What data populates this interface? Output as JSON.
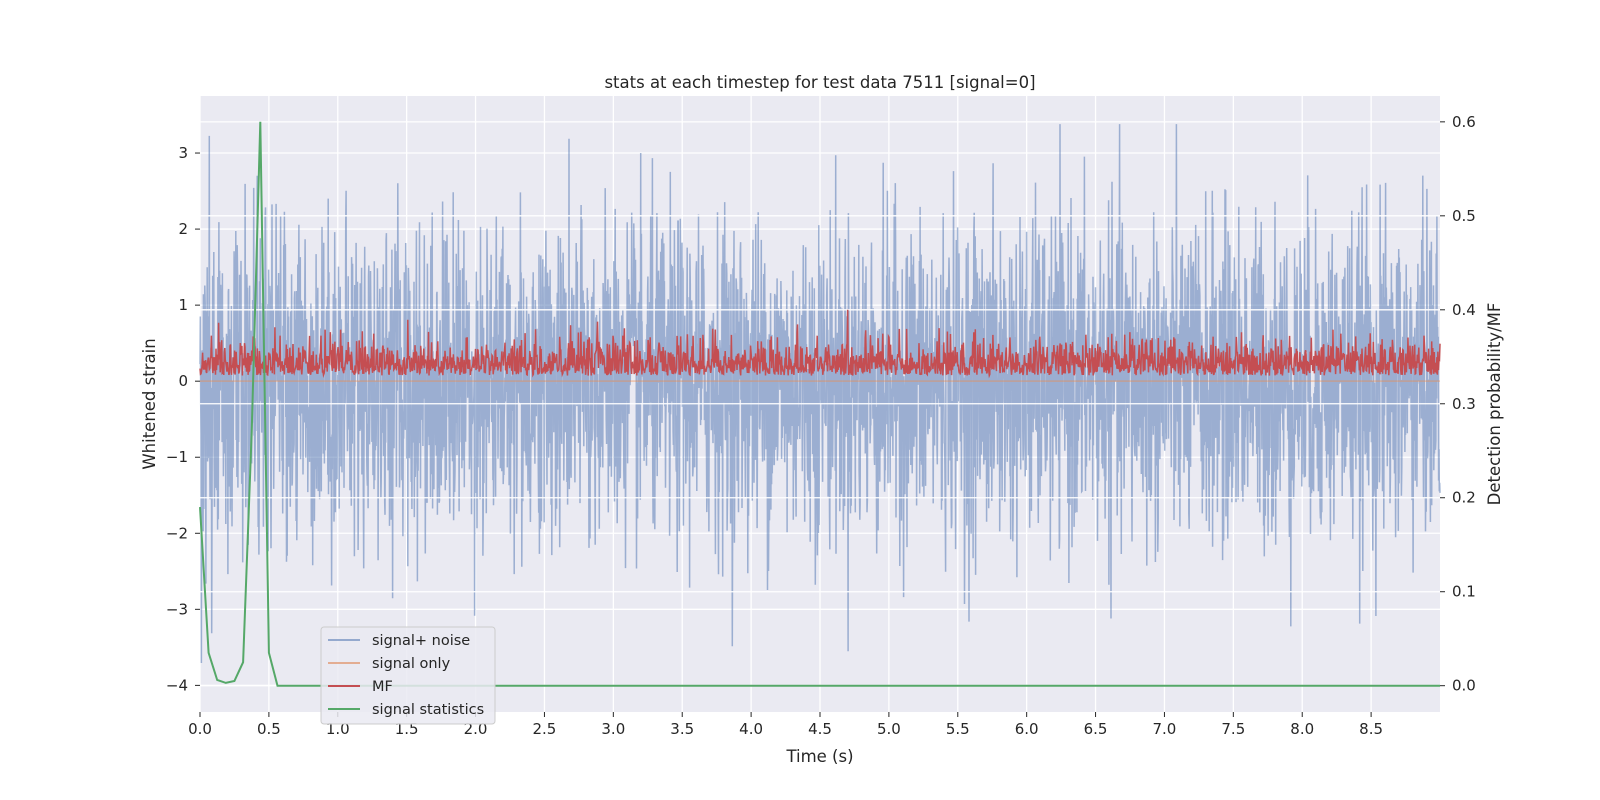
{
  "chart_data": {
    "type": "line",
    "title": "stats at each timestep for test data 7511 [signal=0]",
    "xlabel": "Time (s)",
    "ylabel": "Whitened strain",
    "ylabel_right": "Detection probability/MF",
    "xlim": [
      0.0,
      9.0
    ],
    "ylim": [
      -4.35,
      3.75
    ],
    "ylim_right": [
      -0.028,
      0.6275
    ],
    "x_ticks": [
      "0.0",
      "0.5",
      "1.0",
      "1.5",
      "2.0",
      "2.5",
      "3.0",
      "3.5",
      "4.0",
      "4.5",
      "5.0",
      "5.5",
      "6.0",
      "6.5",
      "7.0",
      "7.5",
      "8.0",
      "8.5"
    ],
    "y_ticks": [
      "3",
      "2",
      "1",
      "0",
      "−1",
      "−2",
      "−3",
      "−4"
    ],
    "y_ticks_right": [
      "0.6",
      "0.5",
      "0.4",
      "0.3",
      "0.2",
      "0.1",
      "0.0"
    ],
    "grid": true,
    "legend_position": "lower-left",
    "series": [
      {
        "name": "signal+ noise",
        "axis": "left",
        "color": "#4c72b0",
        "alpha": 0.5,
        "description": "whitened noise, roughly Gaussian, envelope approx -2.5 to +2.5 with spikes",
        "min": -3.75,
        "max": 3.38
      },
      {
        "name": "signal only",
        "axis": "left",
        "color": "#dd8452",
        "alpha": 0.5,
        "values_const": 0.0
      },
      {
        "name": "MF",
        "axis": "right",
        "color": "#c44e52",
        "description": "matched-filter output, baseline approx 0.33-0.35, peaks up to approx 0.40",
        "min": 0.33,
        "max": 0.4
      },
      {
        "name": "signal statistics",
        "axis": "right",
        "color": "#55a868",
        "x": [
          0.0,
          0.0625,
          0.125,
          0.1875,
          0.25,
          0.3125,
          0.375,
          0.4375,
          0.5,
          0.5625,
          0.625,
          0.75,
          1.0,
          2.0,
          3.0,
          4.0,
          5.0,
          6.0,
          7.0,
          8.0,
          9.0
        ],
        "y": [
          0.19,
          0.035,
          0.006,
          0.003,
          0.005,
          0.025,
          0.27,
          0.6,
          0.035,
          0.0,
          0.0,
          0.0,
          0.0,
          0.0,
          0.0,
          0.0,
          0.0,
          0.0,
          0.0,
          0.0,
          0.0
        ]
      }
    ]
  }
}
